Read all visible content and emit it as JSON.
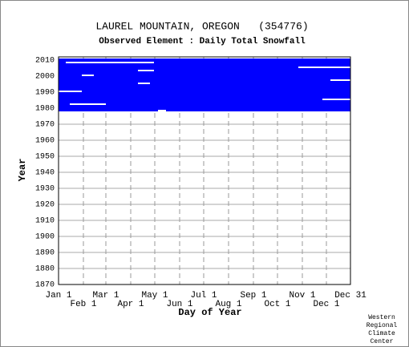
{
  "chart_data": {
    "type": "availability",
    "title": "LAUREL MOUNTAIN, OREGON   (354776)",
    "subtitle": "Observed Element : Daily Total Snowfall",
    "y_label": "Year",
    "x_label": "Day of Year",
    "footer": [
      "Western",
      "Regional",
      "Climate",
      "Center"
    ],
    "color": "#0000ff",
    "xlim": [
      1,
      365
    ],
    "ylim": [
      1870,
      2012
    ],
    "xticks": [
      {
        "value": 1,
        "label": "Jan 1"
      },
      {
        "value": 32,
        "label": "Feb 1"
      },
      {
        "value": 60,
        "label": "Mar 1"
      },
      {
        "value": 91,
        "label": "Apr 1"
      },
      {
        "value": 121,
        "label": "May 1"
      },
      {
        "value": 152,
        "label": "Jun 1"
      },
      {
        "value": 182,
        "label": "Jul 1"
      },
      {
        "value": 213,
        "label": "Aug 1"
      },
      {
        "value": 244,
        "label": "Sep 1"
      },
      {
        "value": 274,
        "label": "Oct 1"
      },
      {
        "value": 305,
        "label": "Nov 1"
      },
      {
        "value": 335,
        "label": "Dec 1"
      },
      {
        "value": 365,
        "label": "Dec 31"
      }
    ],
    "yticks": [
      1870,
      1880,
      1890,
      1900,
      1910,
      1920,
      1930,
      1940,
      1950,
      1960,
      1970,
      1980,
      1990,
      2000,
      2010
    ],
    "grid": true,
    "record": {
      "start_year": 1978,
      "end_year": 2010
    },
    "missing": [
      {
        "year": 1990,
        "day_start": 1,
        "day_end": 30
      },
      {
        "year": 1982,
        "day_start": 15,
        "day_end": 60
      },
      {
        "year": 2005,
        "day_start": 300,
        "day_end": 365
      },
      {
        "year": 1985,
        "day_start": 330,
        "day_end": 365
      },
      {
        "year": 2008,
        "day_start": 10,
        "day_end": 120
      },
      {
        "year": 1978,
        "day_start": 125,
        "day_end": 135
      },
      {
        "year": 2000,
        "day_start": 30,
        "day_end": 45
      },
      {
        "year": 1995,
        "day_start": 100,
        "day_end": 115
      },
      {
        "year": 1997,
        "day_start": 340,
        "day_end": 365
      },
      {
        "year": 2003,
        "day_start": 100,
        "day_end": 120
      }
    ]
  }
}
